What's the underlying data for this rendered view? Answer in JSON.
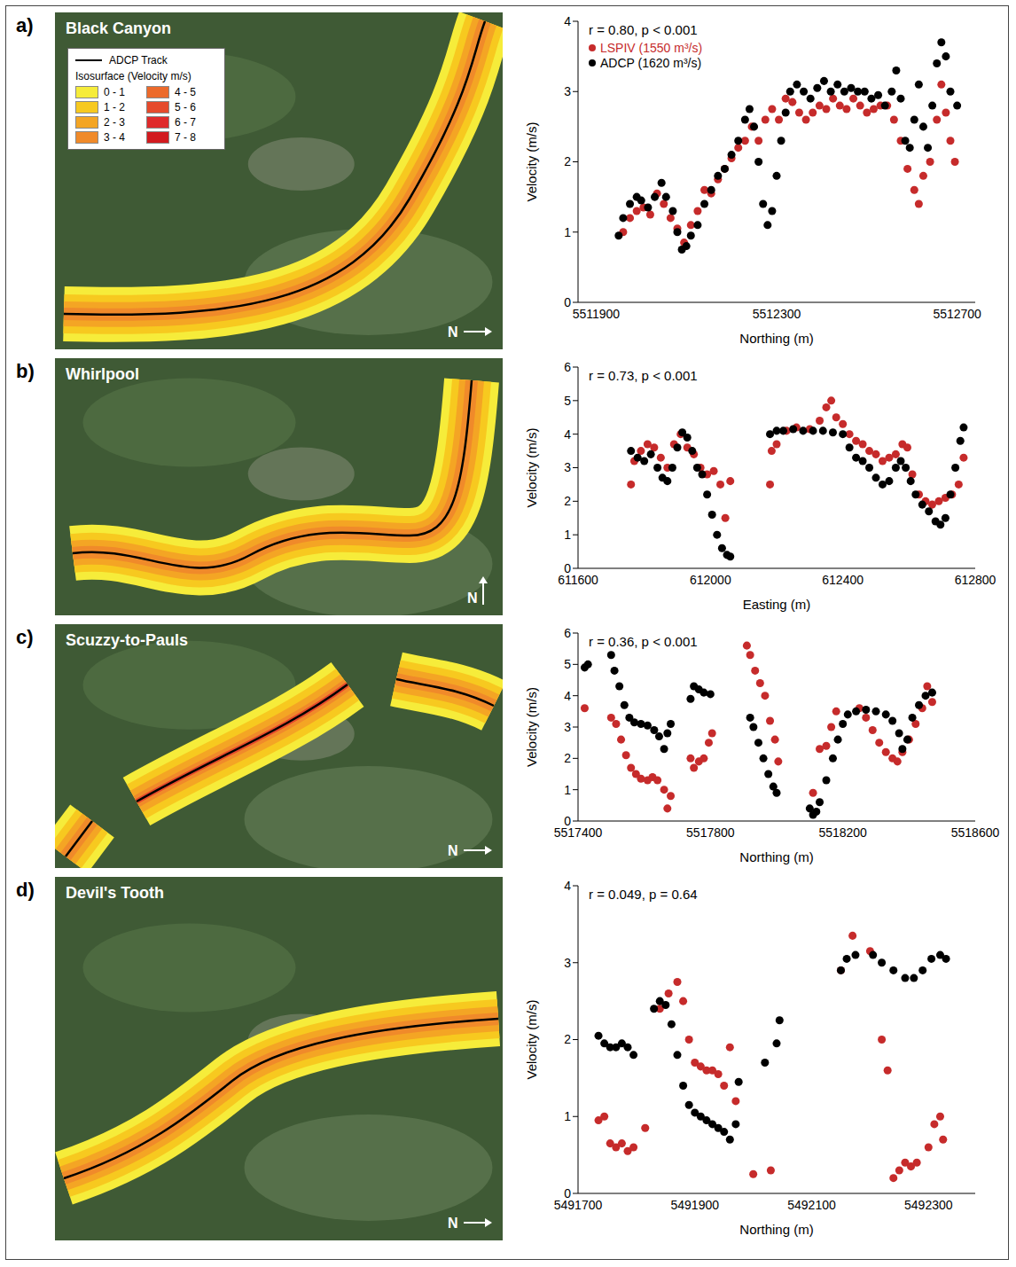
{
  "north_label": "N",
  "map_legend": {
    "track_label": "ADCP Track",
    "title": "Isosurface (Velocity m/s)",
    "classes": [
      {
        "label": "0 - 1",
        "color": "#f6ec3a"
      },
      {
        "label": "1 - 2",
        "color": "#f7c91f"
      },
      {
        "label": "2 - 3",
        "color": "#f4a524"
      },
      {
        "label": "3 - 4",
        "color": "#f08a2a"
      },
      {
        "label": "4 - 5",
        "color": "#ec6a2b"
      },
      {
        "label": "5 - 6",
        "color": "#e64a2c"
      },
      {
        "label": "6 - 7",
        "color": "#df2a2b"
      },
      {
        "label": "7 - 8",
        "color": "#d21a1f"
      }
    ]
  },
  "chart_data": [
    {
      "type": "scatter",
      "panel": "a)",
      "site": "Black Canyon",
      "annotation": "r = 0.80, p < 0.001",
      "x_label": "Northing (m)",
      "y_label": "Velocity (m/s)",
      "xlim": [
        5511860,
        5512740
      ],
      "xticks": [
        5511900,
        5512300,
        5512700
      ],
      "ylim": [
        0,
        4
      ],
      "yticks": [
        0,
        1,
        2,
        3,
        4
      ],
      "legend": "upper left",
      "series": [
        {
          "name": "LSPIV (1550 m³/s)",
          "color": "#c62b2b",
          "marker": "circle",
          "x": [
            5511960,
            5511975,
            5511990,
            5512005,
            5512020,
            5512035,
            5512050,
            5512065,
            5512080,
            5512095,
            5512110,
            5512125,
            5512140,
            5512155,
            5512170,
            5512185,
            5512200,
            5512215,
            5512230,
            5512245,
            5512260,
            5512275,
            5512290,
            5512305,
            5512320,
            5512335,
            5512350,
            5512365,
            5512380,
            5512395,
            5512410,
            5512425,
            5512440,
            5512455,
            5512470,
            5512485,
            5512500,
            5512515,
            5512530,
            5512545,
            5512560,
            5512575,
            5512590,
            5512605,
            5512615,
            5512625,
            5512640,
            5512655,
            5512665,
            5512675,
            5512685,
            5512695
          ],
          "y": [
            1.0,
            1.2,
            1.3,
            1.35,
            1.25,
            1.55,
            1.4,
            1.2,
            1.05,
            0.85,
            1.1,
            1.3,
            1.6,
            1.55,
            1.75,
            1.9,
            2.05,
            2.2,
            2.3,
            2.5,
            2.3,
            2.6,
            2.75,
            2.6,
            2.9,
            2.85,
            2.7,
            2.6,
            2.7,
            2.8,
            2.75,
            2.9,
            2.8,
            2.75,
            2.9,
            2.8,
            2.7,
            2.75,
            2.8,
            2.8,
            2.6,
            2.3,
            1.9,
            1.6,
            1.4,
            1.8,
            2.0,
            2.6,
            3.1,
            2.7,
            2.3,
            2.0
          ]
        },
        {
          "name": "ADCP (1620 m³/s)",
          "color": "#000000",
          "marker": "circle",
          "x": [
            5511950,
            5511960,
            5511975,
            5511990,
            5512000,
            5512015,
            5512030,
            5512045,
            5512055,
            5512070,
            5512080,
            5512090,
            5512100,
            5512110,
            5512125,
            5512140,
            5512155,
            5512170,
            5512185,
            5512200,
            5512215,
            5512230,
            5512240,
            5512250,
            5512260,
            5512270,
            5512280,
            5512290,
            5512300,
            5512310,
            5512320,
            5512330,
            5512345,
            5512360,
            5512375,
            5512390,
            5512405,
            5512420,
            5512435,
            5512450,
            5512465,
            5512480,
            5512495,
            5512510,
            5512525,
            5512540,
            5512555,
            5512565,
            5512575,
            5512585,
            5512595,
            5512605,
            5512615,
            5512625,
            5512635,
            5512645,
            5512655,
            5512665,
            5512675,
            5512685,
            5512700
          ],
          "y": [
            0.95,
            1.2,
            1.4,
            1.5,
            1.45,
            1.35,
            1.5,
            1.7,
            1.5,
            1.3,
            1.0,
            0.75,
            0.8,
            0.95,
            1.1,
            1.4,
            1.6,
            1.8,
            1.9,
            2.1,
            2.3,
            2.6,
            2.75,
            2.5,
            2.0,
            1.4,
            1.1,
            1.3,
            1.8,
            2.3,
            2.7,
            3.0,
            3.1,
            3.0,
            2.9,
            3.05,
            3.15,
            3.0,
            3.1,
            3.0,
            3.05,
            3.0,
            3.0,
            2.9,
            2.95,
            2.8,
            3.0,
            3.3,
            2.9,
            2.3,
            2.2,
            2.6,
            3.1,
            2.5,
            2.2,
            2.8,
            3.4,
            3.7,
            3.5,
            3.0,
            2.8
          ]
        }
      ]
    },
    {
      "type": "scatter",
      "panel": "b)",
      "site": "Whirlpool",
      "annotation": "r = 0.73, p < 0.001",
      "x_label": "Easting (m)",
      "y_label": "Velocity (m/s)",
      "xlim": [
        611600,
        612800
      ],
      "xticks": [
        611600,
        612000,
        612400,
        612800
      ],
      "ylim": [
        0,
        6
      ],
      "yticks": [
        0,
        1,
        2,
        3,
        4,
        5,
        6
      ],
      "series": [
        {
          "color": "#c62b2b",
          "marker": "circle",
          "x": [
            611760,
            611770,
            611790,
            611810,
            611830,
            611850,
            611870,
            611890,
            611910,
            611930,
            611950,
            611970,
            611990,
            612010,
            612030,
            612045,
            612060,
            612180,
            612185,
            612200,
            612230,
            612260,
            612300,
            612330,
            612350,
            612365,
            612380,
            612400,
            612420,
            612440,
            612460,
            612480,
            612500,
            612520,
            612540,
            612560,
            612580,
            612595,
            612610,
            612630,
            612650,
            612670,
            612690,
            612710,
            612730,
            612750,
            612765
          ],
          "y": [
            2.5,
            3.2,
            3.5,
            3.7,
            3.6,
            3.3,
            3.0,
            3.7,
            4.0,
            3.6,
            3.4,
            3.0,
            2.8,
            2.9,
            2.5,
            1.5,
            2.6,
            2.5,
            3.5,
            3.7,
            4.1,
            4.2,
            4.15,
            4.4,
            4.8,
            5.0,
            4.5,
            4.3,
            4.0,
            3.8,
            3.7,
            3.5,
            3.4,
            3.2,
            3.3,
            3.4,
            3.7,
            3.6,
            2.8,
            2.2,
            2.0,
            1.9,
            2.0,
            2.1,
            2.2,
            2.5,
            3.3
          ]
        },
        {
          "color": "#000000",
          "marker": "circle",
          "x": [
            611760,
            611780,
            611800,
            611820,
            611840,
            611855,
            611870,
            611885,
            611900,
            611915,
            611930,
            611945,
            611960,
            611975,
            611990,
            612005,
            612020,
            612035,
            612050,
            612060,
            612180,
            612200,
            612220,
            612250,
            612280,
            612310,
            612340,
            612370,
            612400,
            612420,
            612440,
            612460,
            612480,
            612500,
            612520,
            612540,
            612560,
            612575,
            612590,
            612605,
            612620,
            612640,
            612660,
            612680,
            612695,
            612710,
            612725,
            612740,
            612755,
            612765
          ],
          "y": [
            3.5,
            3.3,
            3.2,
            3.4,
            3.0,
            2.7,
            2.6,
            3.0,
            3.6,
            4.05,
            3.9,
            3.5,
            3.0,
            2.8,
            2.2,
            1.6,
            1.0,
            0.6,
            0.4,
            0.35,
            4.0,
            4.1,
            4.1,
            4.15,
            4.1,
            4.1,
            4.1,
            4.05,
            4.0,
            3.6,
            3.3,
            3.2,
            3.0,
            2.7,
            2.5,
            2.6,
            3.0,
            3.2,
            3.0,
            2.6,
            2.2,
            1.9,
            1.7,
            1.4,
            1.3,
            1.5,
            2.2,
            3.0,
            3.8,
            4.2
          ]
        }
      ]
    },
    {
      "type": "scatter",
      "panel": "c)",
      "site": "Scuzzy-to-Pauls",
      "annotation": "r = 0.36, p < 0.001",
      "x_label": "Northing (m)",
      "y_label": "Velocity (m/s)",
      "xlim": [
        5517400,
        5518600
      ],
      "xticks": [
        5517400,
        5517800,
        5518200,
        5518600
      ],
      "ylim": [
        0,
        6
      ],
      "yticks": [
        0,
        1,
        2,
        3,
        4,
        5,
        6
      ],
      "series": [
        {
          "color": "#c62b2b",
          "marker": "circle",
          "x": [
            5517420,
            5517500,
            5517515,
            5517530,
            5517545,
            5517560,
            5517575,
            5517590,
            5517610,
            5517625,
            5517640,
            5517660,
            5517670,
            5517680,
            5517740,
            5517750,
            5517765,
            5517780,
            5517795,
            5517805,
            5517910,
            5517920,
            5517935,
            5517950,
            5517965,
            5517980,
            5517995,
            5518005,
            5518110,
            5518130,
            5518150,
            5518165,
            5518180,
            5518250,
            5518270,
            5518290,
            5518310,
            5518330,
            5518350,
            5518365,
            5518380,
            5518400,
            5518420,
            5518440,
            5518455,
            5518470
          ],
          "y": [
            3.6,
            3.3,
            3.1,
            2.6,
            2.1,
            1.7,
            1.5,
            1.35,
            1.3,
            1.4,
            1.3,
            1.0,
            0.4,
            0.8,
            2.0,
            1.7,
            1.9,
            2.0,
            2.5,
            2.8,
            5.6,
            5.3,
            4.8,
            4.4,
            4.0,
            3.2,
            2.6,
            1.9,
            0.9,
            2.3,
            2.4,
            3.0,
            3.5,
            3.6,
            3.3,
            2.9,
            2.5,
            2.2,
            2.0,
            1.9,
            2.2,
            2.6,
            3.1,
            3.6,
            4.3,
            3.8
          ]
        },
        {
          "color": "#000000",
          "marker": "circle",
          "x": [
            5517420,
            5517430,
            5517500,
            5517510,
            5517525,
            5517540,
            5517555,
            5517570,
            5517590,
            5517610,
            5517630,
            5517645,
            5517660,
            5517670,
            5517680,
            5517740,
            5517750,
            5517765,
            5517780,
            5517800,
            5517920,
            5517930,
            5517945,
            5517960,
            5517975,
            5517990,
            5518000,
            5518100,
            5518110,
            5518120,
            5518130,
            5518150,
            5518170,
            5518185,
            5518200,
            5518215,
            5518240,
            5518270,
            5518300,
            5518330,
            5518350,
            5518370,
            5518380,
            5518395,
            5518410,
            5518430,
            5518450,
            5518470
          ],
          "y": [
            4.9,
            5.0,
            5.3,
            4.8,
            4.3,
            3.7,
            3.3,
            3.15,
            3.1,
            3.05,
            2.9,
            2.7,
            2.3,
            2.8,
            3.1,
            3.9,
            4.3,
            4.2,
            4.1,
            4.05,
            3.3,
            3.0,
            2.5,
            2.0,
            1.5,
            1.1,
            0.9,
            0.4,
            0.2,
            0.3,
            0.6,
            1.3,
            2.0,
            2.6,
            3.1,
            3.4,
            3.5,
            3.55,
            3.5,
            3.4,
            3.2,
            2.8,
            2.3,
            2.6,
            3.3,
            3.7,
            4.0,
            4.1
          ]
        }
      ]
    },
    {
      "type": "scatter",
      "panel": "d)",
      "site": "Devil's Tooth",
      "annotation": "r = 0.049, p = 0.64",
      "x_label": "Northing (m)",
      "y_label": "Velocity (m/s)",
      "xlim": [
        5491700,
        5492380
      ],
      "xticks": [
        5491700,
        5491900,
        5492100,
        5492300
      ],
      "ylim": [
        0,
        4
      ],
      "yticks": [
        0,
        1,
        2,
        3,
        4
      ],
      "series": [
        {
          "color": "#c62b2b",
          "marker": "circle",
          "x": [
            5491735,
            5491745,
            5491755,
            5491765,
            5491775,
            5491785,
            5491795,
            5491815,
            5491840,
            5491855,
            5491870,
            5491880,
            5491890,
            5491900,
            5491910,
            5491920,
            5491930,
            5491940,
            5491950,
            5491960,
            5491970,
            5492000,
            5492030,
            5492150,
            5492170,
            5492200,
            5492220,
            5492230,
            5492240,
            5492250,
            5492260,
            5492270,
            5492280,
            5492300,
            5492310,
            5492320,
            5492325
          ],
          "y": [
            0.95,
            1.0,
            0.65,
            0.6,
            0.65,
            0.55,
            0.6,
            0.85,
            2.4,
            2.6,
            2.75,
            2.5,
            2.0,
            1.7,
            1.65,
            1.6,
            1.6,
            1.55,
            1.4,
            1.9,
            1.2,
            0.25,
            0.3,
            2.9,
            3.35,
            3.15,
            2.0,
            1.6,
            0.2,
            0.3,
            0.4,
            0.35,
            0.4,
            0.6,
            0.9,
            1.0,
            0.7
          ]
        },
        {
          "color": "#000000",
          "marker": "circle",
          "x": [
            5491735,
            5491745,
            5491755,
            5491765,
            5491775,
            5491785,
            5491795,
            5491830,
            5491840,
            5491850,
            5491860,
            5491870,
            5491880,
            5491890,
            5491900,
            5491910,
            5491920,
            5491930,
            5491940,
            5491950,
            5491960,
            5491970,
            5491975,
            5492020,
            5492040,
            5492045,
            5492150,
            5492160,
            5492175,
            5492205,
            5492220,
            5492240,
            5492260,
            5492275,
            5492290,
            5492305,
            5492320,
            5492330
          ],
          "y": [
            2.05,
            1.95,
            1.9,
            1.9,
            1.95,
            1.9,
            1.8,
            2.4,
            2.5,
            2.45,
            2.2,
            1.8,
            1.4,
            1.15,
            1.05,
            1.0,
            0.95,
            0.9,
            0.85,
            0.8,
            0.7,
            0.9,
            1.45,
            1.7,
            1.95,
            2.25,
            2.9,
            3.05,
            3.1,
            3.1,
            3.0,
            2.9,
            2.8,
            2.8,
            2.9,
            3.05,
            3.1,
            3.05
          ]
        }
      ]
    }
  ]
}
